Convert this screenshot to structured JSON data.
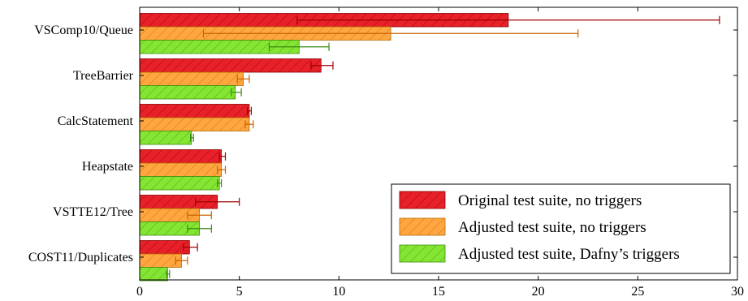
{
  "chart_data": {
    "type": "bar",
    "orientation": "horizontal",
    "title": "",
    "xlabel": "",
    "ylabel": "",
    "categories": [
      "VSComp10/Queue",
      "TreeBarrier",
      "CalcStatement",
      "Heapstate",
      "VSTTE12/Tree",
      "COST11/Duplicates"
    ],
    "xlim": [
      0,
      30
    ],
    "xticks": [
      0,
      5,
      10,
      15,
      20,
      25,
      30
    ],
    "grid": false,
    "legend_position": "bottom-right",
    "series": [
      {
        "name": "Original test suite, no triggers",
        "color": "#e8202a",
        "edge": "#8b0000",
        "err_color": "#a10000",
        "values": [
          18.5,
          9.1,
          5.5,
          4.1,
          3.9,
          2.5
        ],
        "err_low": [
          7.9,
          8.6,
          5.4,
          4.0,
          2.8,
          2.2
        ],
        "err_high": [
          29.1,
          9.7,
          5.6,
          4.3,
          5.0,
          2.9
        ]
      },
      {
        "name": "Adjusted test suite, no triggers",
        "color": "#ffa640",
        "edge": "#b86a00",
        "err_color": "#c86400",
        "values": [
          12.6,
          5.2,
          5.5,
          4.1,
          3.0,
          2.1
        ],
        "err_low": [
          3.2,
          4.9,
          5.3,
          3.9,
          2.4,
          1.8
        ],
        "err_high": [
          22.0,
          5.5,
          5.7,
          4.3,
          3.6,
          2.4
        ]
      },
      {
        "name": "Adjusted test suite, Dafny’s triggers",
        "color": "#84e632",
        "edge": "#3f8f10",
        "err_color": "#3a8a10",
        "values": [
          8.0,
          4.8,
          2.6,
          4.0,
          3.0,
          1.4
        ],
        "err_low": [
          6.5,
          4.6,
          2.55,
          3.9,
          2.4,
          1.35
        ],
        "err_high": [
          9.5,
          5.1,
          2.7,
          4.1,
          3.6,
          1.5
        ]
      }
    ]
  }
}
